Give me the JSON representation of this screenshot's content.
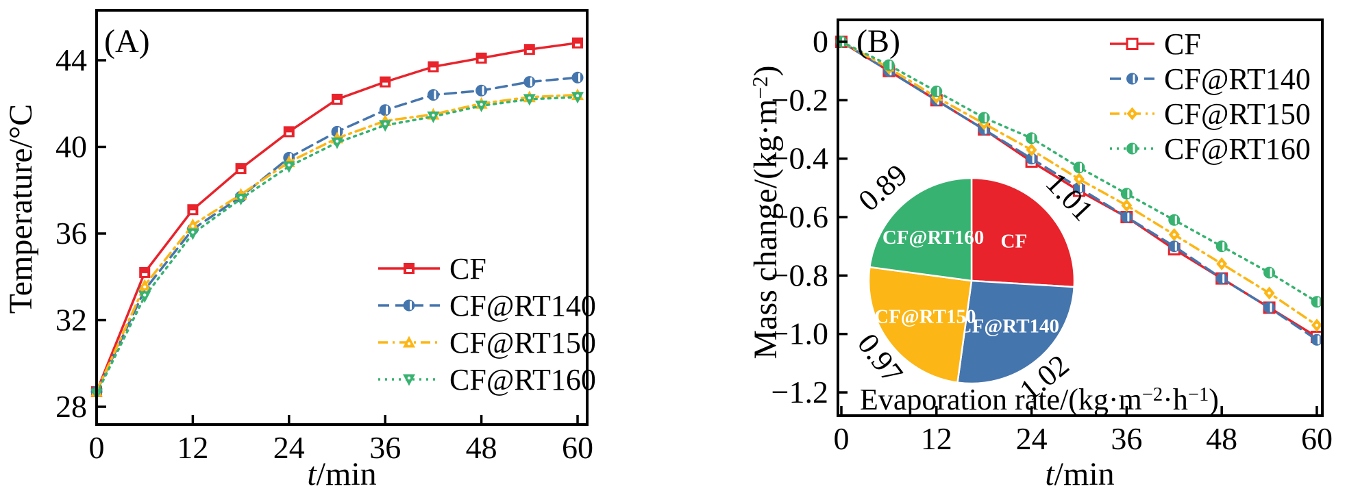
{
  "figure": {
    "background": "#ffffff",
    "description_labels": {
      "panel_a": "(A)",
      "panel_b": "(B)"
    }
  },
  "colors": {
    "cf_red": "#e8232b",
    "rt140_blue": "#4575ad",
    "rt150_yellow": "#fcb616",
    "rt160_green": "#38b271",
    "axis_black": "#000000",
    "label_white": "#ffffff"
  },
  "chart_data": [
    {
      "id": "A",
      "type": "line",
      "panel_label": "(A)",
      "xlabel": "t/min",
      "ylabel": "Temperature/°C",
      "xlim": [
        0,
        61.2
      ],
      "ylim": [
        27.2,
        46.3
      ],
      "xticks": [
        0,
        12,
        24,
        36,
        48,
        60
      ],
      "xtick_labels": [
        "0",
        "12",
        "24",
        "36",
        "48",
        "60"
      ],
      "yticks": [
        28,
        32,
        36,
        40,
        44
      ],
      "ytick_labels": [
        "28",
        "32",
        "36",
        "40",
        "44"
      ],
      "grid": false,
      "legend_position": "lower-right",
      "x": [
        0,
        6,
        12,
        18,
        24,
        30,
        36,
        42,
        48,
        54,
        60
      ],
      "series": [
        {
          "name": "CF",
          "color": "#e8232b",
          "line": "solid",
          "marker": "square-filled",
          "values": [
            28.7,
            34.2,
            37.1,
            39.0,
            40.7,
            42.2,
            43.0,
            43.7,
            44.1,
            44.5,
            44.8
          ]
        },
        {
          "name": "CF@RT140",
          "color": "#4575ad",
          "line": "dashed",
          "marker": "circle-half",
          "values": [
            28.7,
            33.4,
            36.2,
            37.7,
            39.5,
            40.7,
            41.7,
            42.4,
            42.6,
            43.0,
            43.2
          ]
        },
        {
          "name": "CF@RT150",
          "color": "#fcb616",
          "line": "dashdot",
          "marker": "triangle-up",
          "values": [
            28.7,
            33.6,
            36.4,
            37.8,
            39.3,
            40.4,
            41.2,
            41.5,
            42.0,
            42.3,
            42.4
          ]
        },
        {
          "name": "CF@RT160",
          "color": "#38b271",
          "line": "dotted",
          "marker": "triangle-down",
          "values": [
            28.6,
            33.1,
            36.0,
            37.6,
            39.1,
            40.2,
            41.0,
            41.4,
            41.9,
            42.2,
            42.3
          ]
        }
      ]
    },
    {
      "id": "B",
      "type": "line",
      "panel_label": "(B)",
      "xlabel": "t/min",
      "ylabel": "Mass change/(kg·m⁻²)",
      "xlim": [
        0,
        60.7
      ],
      "ylim": [
        -1.28,
        0.075
      ],
      "xticks": [
        0,
        12,
        24,
        36,
        48,
        60
      ],
      "xtick_labels": [
        "0",
        "12",
        "24",
        "36",
        "48",
        "60"
      ],
      "yticks": [
        0,
        -0.2,
        -0.4,
        -0.6,
        -0.8,
        -1.0,
        -1.2
      ],
      "ytick_labels": [
        "0",
        "−0.2",
        "−0.4",
        "−0.6",
        "−0.8",
        "−1.0",
        "−1.2"
      ],
      "grid": false,
      "legend_position": "upper-right",
      "x": [
        0,
        6,
        12,
        18,
        24,
        30,
        36,
        42,
        48,
        54,
        60
      ],
      "series": [
        {
          "name": "CF",
          "color": "#e8232b",
          "line": "solid",
          "marker": "square-open",
          "values": [
            0,
            -0.1,
            -0.2,
            -0.3,
            -0.41,
            -0.51,
            -0.6,
            -0.71,
            -0.81,
            -0.91,
            -1.01
          ]
        },
        {
          "name": "CF@RT140",
          "color": "#4575ad",
          "line": "dashed",
          "marker": "circle-half",
          "values": [
            0,
            -0.1,
            -0.2,
            -0.3,
            -0.4,
            -0.5,
            -0.6,
            -0.7,
            -0.81,
            -0.91,
            -1.02
          ]
        },
        {
          "name": "CF@RT150",
          "color": "#fcb616",
          "line": "dashdot",
          "marker": "diamond",
          "values": [
            0,
            -0.09,
            -0.19,
            -0.28,
            -0.37,
            -0.47,
            -0.56,
            -0.66,
            -0.76,
            -0.86,
            -0.97
          ]
        },
        {
          "name": "CF@RT160",
          "color": "#38b271",
          "line": "dotted",
          "marker": "circle-half",
          "values": [
            0,
            -0.08,
            -0.17,
            -0.26,
            -0.33,
            -0.43,
            -0.52,
            -0.61,
            -0.7,
            -0.79,
            -0.89
          ]
        }
      ],
      "inset_pie": {
        "type": "pie",
        "caption": "Evaporation rate/(kg·m⁻²·h⁻¹)",
        "slices": [
          {
            "name": "CF",
            "value": 1.01,
            "value_label": "1.01",
            "color": "#e8232b"
          },
          {
            "name": "CF@RT140",
            "value": 1.02,
            "value_label": "1.02",
            "color": "#4575ad"
          },
          {
            "name": "CF@RT150",
            "value": 0.97,
            "value_label": "0.97",
            "color": "#fcb616"
          },
          {
            "name": "CF@RT160",
            "value": 0.89,
            "value_label": "0.89",
            "color": "#38b271"
          }
        ]
      }
    }
  ]
}
